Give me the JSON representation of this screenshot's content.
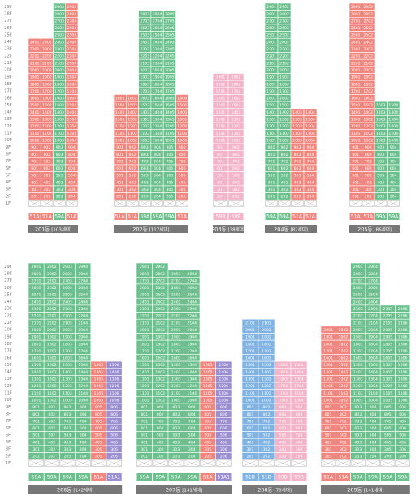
{
  "floors": [
    {
      "label": "29F",
      "code": "29"
    },
    {
      "label": "28F",
      "code": "28"
    },
    {
      "label": "27F",
      "code": "27"
    },
    {
      "label": "26F",
      "code": "26"
    },
    {
      "label": "25F",
      "code": "25"
    },
    {
      "label": "24F",
      "code": "24"
    },
    {
      "label": "23F",
      "code": "23"
    },
    {
      "label": "22F",
      "code": "22"
    },
    {
      "label": "21F",
      "code": "21"
    },
    {
      "label": "20F",
      "code": "20"
    },
    {
      "label": "19F",
      "code": "19"
    },
    {
      "label": "18F",
      "code": "18"
    },
    {
      "label": "17F",
      "code": "17"
    },
    {
      "label": "16F",
      "code": "16"
    },
    {
      "label": "15F",
      "code": "15"
    },
    {
      "label": "14F",
      "code": "14"
    },
    {
      "label": "13F",
      "code": "13"
    },
    {
      "label": "12F",
      "code": "12"
    },
    {
      "label": "11F",
      "code": "11"
    },
    {
      "label": "10F",
      "code": "10"
    },
    {
      "label": "9F",
      "code": "9"
    },
    {
      "label": "8F",
      "code": "8"
    },
    {
      "label": "7F",
      "code": "7"
    },
    {
      "label": "6F",
      "code": "6"
    },
    {
      "label": "5F",
      "code": "5"
    },
    {
      "label": "4F",
      "code": "4"
    },
    {
      "label": "3F",
      "code": "3"
    },
    {
      "label": "2F",
      "code": "2"
    },
    {
      "label": "1F"
    }
  ],
  "sections": [
    {
      "buildings": [
        {
          "name": "201동",
          "households": "[103세대]",
          "columns": [
            {
              "code": "01",
              "type": "51A",
              "color": "#f2857d",
              "top": 24
            },
            {
              "code": "02",
              "type": "51A",
              "color": "#f2857d",
              "top": 24
            },
            {
              "code": "03",
              "type": "59A",
              "color": "#6cc08e",
              "top": 29
            },
            {
              "code": "04",
              "type": "51A",
              "color": "#f2857d",
              "top": 29
            }
          ]
        },
        {
          "name": "202동",
          "households": "[117세대]",
          "columns": [
            {
              "code": "01",
              "type": "51A",
              "color": "#f2857d",
              "top": 16
            },
            {
              "code": "02",
              "type": "51A",
              "color": "#f2857d",
              "top": 16
            },
            {
              "code": "03",
              "type": "59A",
              "color": "#6cc08e",
              "top": 28
            },
            {
              "code": "04",
              "type": "59A",
              "color": "#6cc08e",
              "top": 28
            },
            {
              "code": "05",
              "type": "59A",
              "color": "#6cc08e",
              "top": 28
            },
            {
              "code": "06",
              "type": "51A",
              "color": "#f2857d",
              "top": 16
            }
          ]
        },
        {
          "name": "203동",
          "households": "[38세대]",
          "columns": [
            {
              "code": "01",
              "type": "59B",
              "color": "#f3b3c8",
              "top": 19
            },
            {
              "code": "02",
              "type": "59B",
              "color": "#f3b3c8",
              "top": 19
            }
          ]
        },
        {
          "name": "204동",
          "households": "[82세대]",
          "columns": [
            {
              "code": "01",
              "type": "59A",
              "color": "#6cc08e",
              "top": 29
            },
            {
              "code": "02",
              "type": "59A",
              "color": "#6cc08e",
              "top": 29
            },
            {
              "code": "03",
              "type": "51A",
              "color": "#f2857d",
              "top": 14
            },
            {
              "code": "04",
              "type": "51A",
              "color": "#f2857d",
              "top": 14
            }
          ]
        },
        {
          "name": "205동",
          "households": "[86세대]",
          "columns": [
            {
              "code": "01",
              "type": "51A",
              "color": "#f2857d",
              "top": 29
            },
            {
              "code": "02",
              "type": "51A",
              "color": "#f2857d",
              "top": 29
            },
            {
              "code": "03",
              "type": "59A",
              "color": "#6cc08e",
              "top": 15
            },
            {
              "code": "04",
              "type": "59A",
              "color": "#6cc08e",
              "top": 15
            }
          ]
        }
      ]
    },
    {
      "buildings": [
        {
          "name": "206동",
          "households": "[142세대]",
          "columns": [
            {
              "code": "01",
              "type": "59A",
              "color": "#6cc08e",
              "top": 29
            },
            {
              "code": "02",
              "type": "59A",
              "color": "#6cc08e",
              "top": 29
            },
            {
              "code": "03",
              "type": "59A",
              "color": "#6cc08e",
              "top": 29
            },
            {
              "code": "04",
              "type": "59A",
              "color": "#6cc08e",
              "top": 29
            },
            {
              "code": "05",
              "type": "51A",
              "color": "#f2857d",
              "top": 15
            },
            {
              "code": "06",
              "type": "51A1",
              "color": "#9b8fd2",
              "top": 15
            }
          ]
        },
        {
          "name": "207동",
          "households": "[141세대]",
          "columns": [
            {
              "code": "01",
              "type": "59A",
              "color": "#6cc08e",
              "top": 29
            },
            {
              "code": "02",
              "type": "59A",
              "color": "#6cc08e",
              "top": 29
            },
            {
              "code": "03",
              "type": "59A",
              "color": "#6cc08e",
              "top": 28
            },
            {
              "code": "04",
              "type": "59A",
              "color": "#6cc08e",
              "top": 28
            },
            {
              "code": "05",
              "type": "51A",
              "color": "#f2857d",
              "top": 15
            },
            {
              "code": "06",
              "type": "51A1",
              "color": "#9b8fd2",
              "top": 15
            }
          ]
        },
        {
          "name": "208동",
          "households": "[70세대]",
          "columns": [
            {
              "code": "01",
              "type": "51B",
              "color": "#7fb3e3",
              "top": 21
            },
            {
              "code": "02",
              "type": "51B",
              "color": "#7fb3e3",
              "top": 21
            },
            {
              "code": "03",
              "type": "59B",
              "color": "#f3b3c8",
              "top": 15
            },
            {
              "code": "04",
              "type": "59B",
              "color": "#f3b3c8",
              "top": 15
            }
          ]
        },
        {
          "name": "209동",
          "households": "[141세대]",
          "columns": [
            {
              "code": "01",
              "type": "51A",
              "color": "#f2857d",
              "top": 20
            },
            {
              "code": "02",
              "type": "51A",
              "color": "#f2857d",
              "top": 20
            },
            {
              "code": "03",
              "type": "59A",
              "color": "#6cc08e",
              "top": 29
            },
            {
              "code": "04",
              "type": "59A",
              "color": "#6cc08e",
              "top": 29
            },
            {
              "code": "05",
              "type": "59A",
              "color": "#6cc08e",
              "top": 23
            },
            {
              "code": "06",
              "type": "59A",
              "color": "#6cc08e",
              "top": 23
            }
          ]
        }
      ]
    }
  ]
}
